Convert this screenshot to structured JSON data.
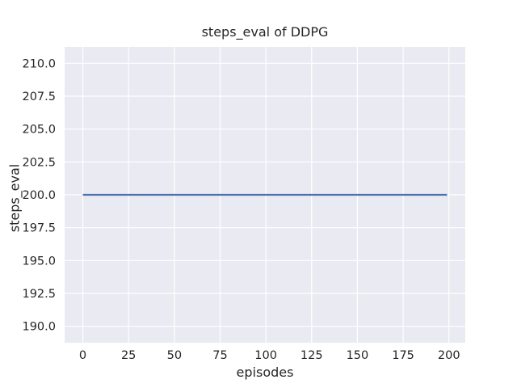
{
  "chart_data": {
    "type": "line",
    "title": "steps_eval of DDPG",
    "xlabel": "episodes",
    "ylabel": "steps_eval",
    "x_ticks": [
      0,
      25,
      50,
      75,
      100,
      125,
      150,
      175,
      200
    ],
    "x_tick_labels": [
      "0",
      "25",
      "50",
      "75",
      "100",
      "125",
      "150",
      "175",
      "200"
    ],
    "y_ticks": [
      190.0,
      192.5,
      195.0,
      197.5,
      200.0,
      202.5,
      205.0,
      207.5,
      210.0
    ],
    "y_tick_labels": [
      "190.0",
      "192.5",
      "195.0",
      "197.5",
      "200.0",
      "202.5",
      "205.0",
      "207.5",
      "210.0"
    ],
    "xlim": [
      -9.95,
      208.95
    ],
    "ylim": [
      188.75,
      211.25
    ],
    "grid": true,
    "legend_position": "none",
    "style": {
      "figure_background": "#ffffff",
      "plot_background": "#eaeaf2",
      "grid_color": "#ffffff",
      "text_color": "#262626",
      "line_color": "#4c72b0"
    },
    "series": [
      {
        "name": "DDPG",
        "color": "#4c72b0",
        "x": [
          0,
          199
        ],
        "y": [
          200,
          200
        ]
      }
    ]
  }
}
